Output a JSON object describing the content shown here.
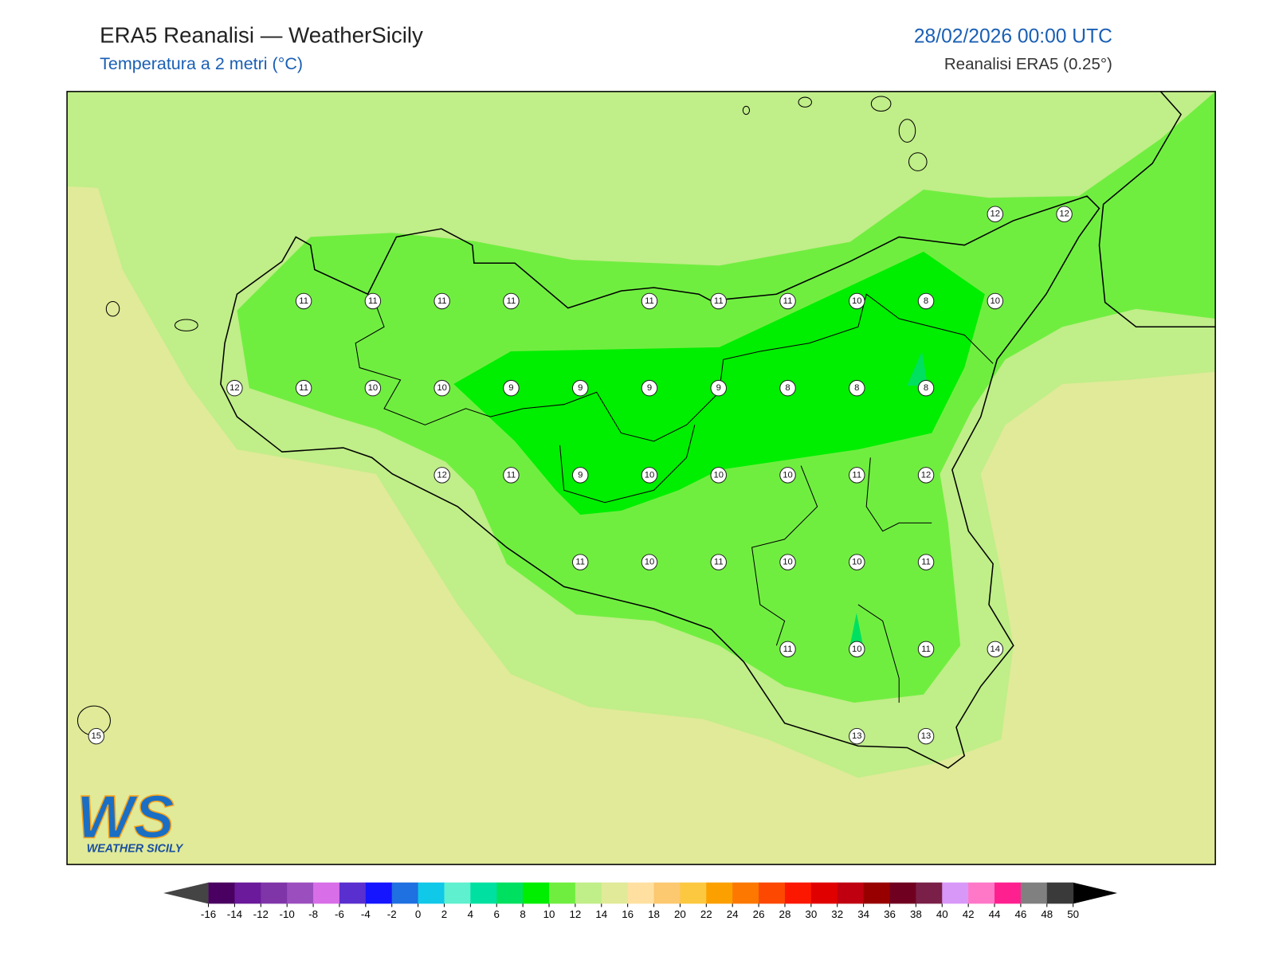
{
  "header": {
    "title": "ERA5 Reanalisi — WeatherSicily",
    "subtitle": "Temperatura a 2 metri (°C)",
    "datetime": "28/02/2026 00:00 UTC",
    "source": "Reanalisi ERA5 (0.25°)"
  },
  "stations": [
    12,
    12,
    11,
    11,
    11,
    11,
    11,
    11,
    11,
    10,
    8,
    10,
    12,
    11,
    10,
    10,
    9,
    9,
    9,
    9,
    8,
    8,
    8,
    12,
    11,
    9,
    10,
    10,
    10,
    11,
    12,
    11,
    10,
    11,
    10,
    10,
    11,
    11,
    10,
    11,
    14,
    15,
    13,
    13
  ],
  "colorbar": {
    "ticks": [
      -16,
      -14,
      -12,
      -10,
      -8,
      -6,
      -4,
      -2,
      0,
      2,
      4,
      6,
      8,
      10,
      12,
      14,
      16,
      18,
      20,
      22,
      24,
      26,
      28,
      30,
      32,
      34,
      36,
      38,
      40,
      42,
      44,
      46,
      48,
      50
    ],
    "colors": [
      "#4a0060",
      "#6a1a9a",
      "#7f35a8",
      "#9b4fbf",
      "#d86ee8",
      "#5a2fcf",
      "#1515ff",
      "#1f70e0",
      "#10c8e8",
      "#5ff0d0",
      "#00e0a0",
      "#00e060",
      "#00ee00",
      "#70ee40",
      "#c0ee88",
      "#e0ea98",
      "#ffe0a0",
      "#fcc870",
      "#fcc840",
      "#fca000",
      "#fc7800",
      "#fc4800",
      "#fc1800",
      "#e00000",
      "#c00010",
      "#980000",
      "#700020",
      "#7a2048",
      "#d898f8",
      "#ff78c8",
      "#ff2090",
      "#808080",
      "#3a3a3a"
    ],
    "under_color": "#444444",
    "over_color": "#000000"
  },
  "logo": {
    "mark": "WS",
    "text": "WEATHER SICILY"
  }
}
